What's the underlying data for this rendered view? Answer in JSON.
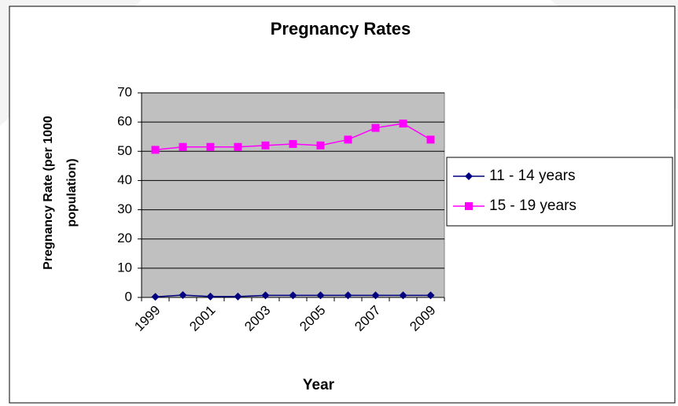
{
  "chart_data": {
    "type": "line",
    "title": "Pregnancy Rates",
    "xlabel": "Year",
    "ylabel": [
      "Pregnancy Rate (per 1000",
      "population)"
    ],
    "categories": [
      "1999",
      null,
      "2001",
      null,
      "2003",
      null,
      "2005",
      null,
      "2007",
      null,
      "2009"
    ],
    "series": [
      {
        "name": "11 - 14 years",
        "color": "#000080",
        "marker": "diamond",
        "values": [
          0.2,
          0.8,
          0.3,
          0.3,
          0.7,
          0.7,
          0.7,
          0.7,
          0.7,
          0.7,
          0.7
        ]
      },
      {
        "name": "15 - 19 years",
        "color": "#ff00ff",
        "marker": "square",
        "values": [
          50.5,
          51.5,
          51.5,
          51.5,
          52,
          52.5,
          52,
          54,
          58,
          59.5,
          54
        ]
      }
    ],
    "ylim": [
      0,
      70
    ],
    "yticks": [
      0,
      10,
      20,
      30,
      40,
      50,
      60,
      70
    ],
    "grid": true,
    "legend": "right"
  }
}
